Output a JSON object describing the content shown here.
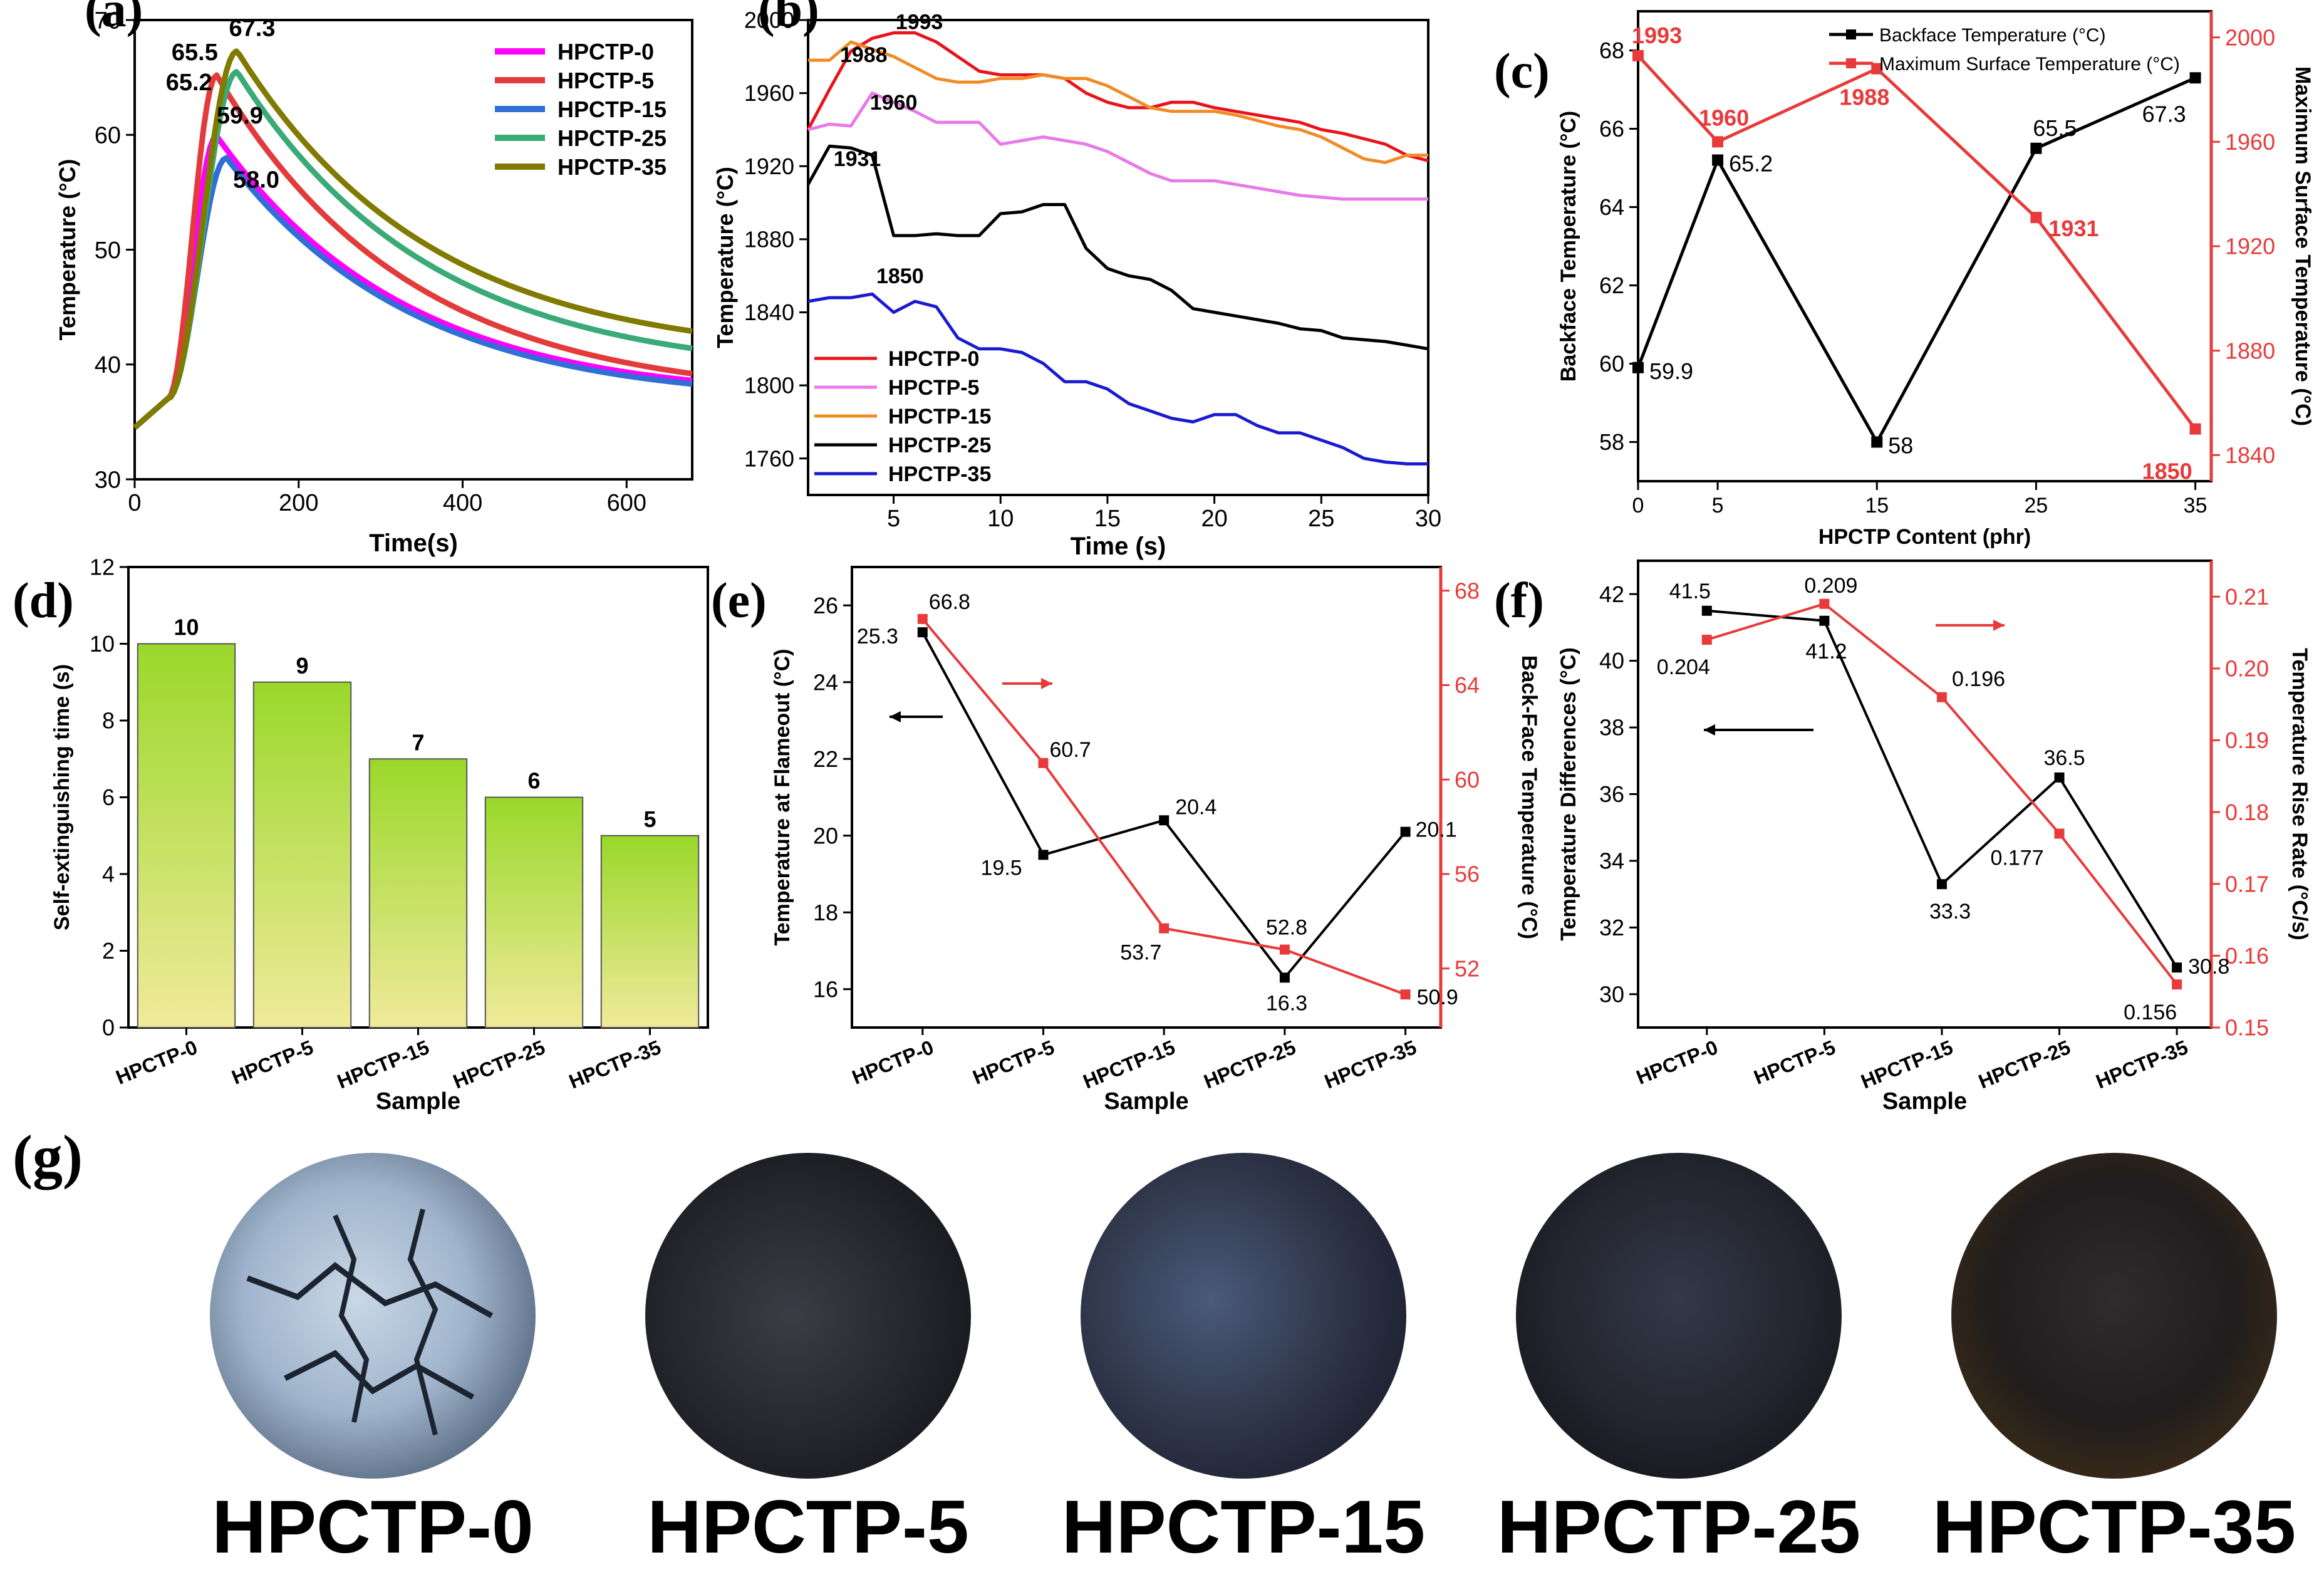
{
  "colors": {
    "pink": "#ff00ff",
    "red": "#e33b3b",
    "blue": "#2f6fd6",
    "green": "#3aaa77",
    "olive": "#807b00",
    "b_red": "#e8141c",
    "b_violet": "#e879e8",
    "b_orange": "#f08b25",
    "b_black": "#000000",
    "b_blue": "#1a1ad0",
    "axis_red": "#e83a3a",
    "bar_top": "#9ad82a",
    "bar_bottom": "#f0ea9a"
  },
  "chart_data": [
    {
      "panel": "(a)",
      "type": "line",
      "xlabel": "Time(s)",
      "ylabel": "Temperature (°C)",
      "xlim": [
        0,
        680
      ],
      "ylim": [
        30,
        70
      ],
      "xticks": [
        0,
        200,
        400,
        600
      ],
      "yticks": [
        30,
        40,
        50,
        60,
        70
      ],
      "legend": {
        "position": "top-right"
      },
      "series": [
        {
          "name": "HPCTP-0",
          "color_key": "pink",
          "peak_t": 100,
          "peak": 59.9,
          "final": 38.6
        },
        {
          "name": "HPCTP-5",
          "color_key": "red",
          "peak_t": 100,
          "peak": 65.2,
          "final": 39.2
        },
        {
          "name": "HPCTP-15",
          "color_key": "blue",
          "peak_t": 112,
          "peak": 58.0,
          "final": 38.3
        },
        {
          "name": "HPCTP-25",
          "color_key": "green",
          "peak_t": 125,
          "peak": 65.5,
          "final": 41.4
        },
        {
          "name": "HPCTP-35",
          "color_key": "olive",
          "peak_t": 125,
          "peak": 67.3,
          "final": 42.9
        }
      ],
      "annotations": [
        {
          "text": "65.5",
          "x": 45,
          "y": 66.5
        },
        {
          "text": "67.3",
          "x": 115,
          "y": 68.6
        },
        {
          "text": "65.2",
          "x": 38,
          "y": 63.9
        },
        {
          "text": "59.9",
          "x": 100,
          "y": 61.0
        },
        {
          "text": "58.0",
          "x": 120,
          "y": 55.4
        }
      ]
    },
    {
      "panel": "(b)",
      "type": "line",
      "xlabel": "Time (s)",
      "ylabel": "Temperature (°C)",
      "xlim": [
        1,
        30
      ],
      "ylim": [
        1740,
        2000
      ],
      "xticks": [
        5,
        10,
        15,
        20,
        25,
        30
      ],
      "yticks": [
        1760,
        1800,
        1840,
        1880,
        1920,
        1960,
        2000
      ],
      "legend": {
        "position": "bottom-left"
      },
      "series": [
        {
          "name": "HPCTP-0",
          "color_key": "b_red",
          "x": [
            1,
            2,
            3,
            4,
            5,
            6,
            7,
            8,
            9,
            10,
            11,
            12,
            13,
            14,
            15,
            16,
            17,
            18,
            19,
            20,
            21,
            22,
            23,
            24,
            25,
            26,
            27,
            28,
            29,
            30
          ],
          "values": [
            1940,
            1962,
            1983,
            1990,
            1993,
            1993,
            1988,
            1980,
            1972,
            1970,
            1970,
            1970,
            1968,
            1960,
            1955,
            1952,
            1952,
            1955,
            1955,
            1952,
            1950,
            1948,
            1946,
            1944,
            1940,
            1938,
            1935,
            1932,
            1926,
            1923
          ]
        },
        {
          "name": "HPCTP-5",
          "color_key": "b_violet",
          "x": [
            1,
            2,
            3,
            4,
            5,
            6,
            7,
            8,
            9,
            10,
            11,
            12,
            13,
            14,
            15,
            16,
            17,
            18,
            19,
            20,
            21,
            22,
            23,
            24,
            25,
            26,
            27,
            28,
            29,
            30
          ],
          "values": [
            1940,
            1943,
            1942,
            1960,
            1955,
            1950,
            1944,
            1944,
            1944,
            1932,
            1934,
            1936,
            1934,
            1932,
            1928,
            1922,
            1916,
            1912,
            1912,
            1912,
            1910,
            1908,
            1906,
            1904,
            1903,
            1902,
            1902,
            1902,
            1902,
            1902
          ]
        },
        {
          "name": "HPCTP-15",
          "color_key": "b_orange",
          "x": [
            1,
            2,
            3,
            4,
            5,
            6,
            7,
            8,
            9,
            10,
            11,
            12,
            13,
            14,
            15,
            16,
            17,
            18,
            19,
            20,
            21,
            22,
            23,
            24,
            25,
            26,
            27,
            28,
            29,
            30
          ],
          "values": [
            1978,
            1978,
            1988,
            1984,
            1980,
            1974,
            1968,
            1966,
            1966,
            1968,
            1968,
            1970,
            1968,
            1968,
            1964,
            1958,
            1952,
            1950,
            1950,
            1950,
            1948,
            1945,
            1942,
            1940,
            1936,
            1930,
            1924,
            1922,
            1926,
            1926
          ]
        },
        {
          "name": "HPCTP-25",
          "color_key": "b_black",
          "x": [
            1,
            2,
            3,
            4,
            5,
            6,
            7,
            8,
            9,
            10,
            11,
            12,
            13,
            14,
            15,
            16,
            17,
            18,
            19,
            20,
            21,
            22,
            23,
            24,
            25,
            26,
            27,
            28,
            29,
            30
          ],
          "values": [
            1910,
            1931,
            1930,
            1926,
            1882,
            1882,
            1883,
            1882,
            1882,
            1894,
            1895,
            1899,
            1899,
            1875,
            1864,
            1860,
            1858,
            1852,
            1842,
            1840,
            1838,
            1836,
            1834,
            1831,
            1830,
            1826,
            1825,
            1824,
            1822,
            1820
          ]
        },
        {
          "name": "HPCTP-35",
          "color_key": "b_blue",
          "x": [
            1,
            2,
            3,
            4,
            5,
            6,
            7,
            8,
            9,
            10,
            11,
            12,
            13,
            14,
            15,
            16,
            17,
            18,
            19,
            20,
            21,
            22,
            23,
            24,
            25,
            26,
            27,
            28,
            29,
            30
          ],
          "values": [
            1846,
            1848,
            1848,
            1850,
            1840,
            1846,
            1843,
            1826,
            1820,
            1820,
            1818,
            1812,
            1802,
            1802,
            1798,
            1790,
            1786,
            1782,
            1780,
            1784,
            1784,
            1778,
            1774,
            1774,
            1770,
            1766,
            1760,
            1758,
            1757,
            1757
          ]
        }
      ],
      "annotations": [
        {
          "text": "1993",
          "x": 6.2,
          "y": 1995
        },
        {
          "text": "1988",
          "x": 3.6,
          "y": 1977
        },
        {
          "text": "1960",
          "x": 5.0,
          "y": 1951
        },
        {
          "text": "1931",
          "x": 3.3,
          "y": 1920
        },
        {
          "text": "1850",
          "x": 5.3,
          "y": 1856
        }
      ]
    },
    {
      "panel": "(c)",
      "type": "line",
      "dual_axis": true,
      "xlabel": "HPCTP Content (phr)",
      "ylabel_left": "Backface Temperature (°C)",
      "ylabel_right": "Maximum Surface Temperature (°C)",
      "xlim": [
        0,
        36
      ],
      "ylim_left": [
        57,
        69
      ],
      "ylim_right": [
        1830,
        2010
      ],
      "xticks": [
        0,
        5,
        15,
        25,
        35
      ],
      "yticks_left": [
        58,
        60,
        62,
        64,
        66,
        68
      ],
      "yticks_right": [
        1840,
        1880,
        1920,
        1960,
        2000
      ],
      "legend": {
        "position": "top-right"
      },
      "series": [
        {
          "name": "Backface Temperature (°C)",
          "axis": "left",
          "color_key": "b_black",
          "x": [
            0,
            5,
            15,
            25,
            35
          ],
          "values": [
            59.9,
            65.2,
            58,
            65.5,
            67.3
          ],
          "labels": [
            "59.9",
            "65.2",
            "58",
            "65.5",
            "67.3"
          ]
        },
        {
          "name": "Maximum Surface Temperature (°C)",
          "axis": "right",
          "color_key": "axis_red",
          "x": [
            0,
            5,
            15,
            25,
            35
          ],
          "values": [
            1993,
            1960,
            1988,
            1931,
            1850
          ],
          "labels": [
            "1993",
            "1960",
            "1988",
            "1931",
            "1850"
          ]
        }
      ]
    },
    {
      "panel": "(d)",
      "type": "bar",
      "xlabel": "Sample",
      "ylabel": "Self-extinguishing time (s)",
      "categories": [
        "HPCTP-0",
        "HPCTP-5",
        "HPCTP-15",
        "HPCTP-25",
        "HPCTP-35"
      ],
      "values": [
        10,
        9,
        7,
        6,
        5
      ],
      "ylim": [
        0,
        12
      ],
      "yticks": [
        0,
        2,
        4,
        6,
        8,
        10,
        12
      ]
    },
    {
      "panel": "(e)",
      "type": "line",
      "dual_axis": true,
      "xlabel": "Sample",
      "ylabel_left": "Temperature at Flameout (°C)",
      "ylabel_right": "Back-Face Temperature (°C)",
      "categories": [
        "HPCTP-0",
        "HPCTP-5",
        "HPCTP-15",
        "HPCTP-25",
        "HPCTP-35"
      ],
      "ylim_left": [
        15,
        27
      ],
      "ylim_right": [
        49.5,
        69
      ],
      "yticks_left": [
        16,
        18,
        20,
        22,
        24,
        26
      ],
      "yticks_right": [
        52,
        56,
        60,
        64,
        68
      ],
      "series": [
        {
          "name": "Temperature at Flameout",
          "axis": "left",
          "color_key": "b_black",
          "values": [
            25.3,
            19.5,
            20.4,
            16.3,
            20.1
          ],
          "labels": [
            "25.3",
            "19.5",
            "20.4",
            "16.3",
            "20.1"
          ]
        },
        {
          "name": "Back-Face Temperature",
          "axis": "right",
          "color_key": "axis_red",
          "values": [
            66.8,
            60.7,
            53.7,
            52.8,
            50.9
          ],
          "labels": [
            "66.8",
            "60.7",
            "53.7",
            "52.8",
            "50.9"
          ]
        }
      ]
    },
    {
      "panel": "(f)",
      "type": "line",
      "dual_axis": true,
      "xlabel": "Sample",
      "ylabel_left": "Temperature Differences (°C)",
      "ylabel_right": "Temperature Rise Rate (°C/s)",
      "categories": [
        "HPCTP-0",
        "HPCTP-5",
        "HPCTP-15",
        "HPCTP-25",
        "HPCTP-35"
      ],
      "ylim_left": [
        29,
        43
      ],
      "ylim_right": [
        0.15,
        0.215
      ],
      "yticks_left": [
        30,
        32,
        34,
        36,
        38,
        40,
        42
      ],
      "yticks_right": [
        0.15,
        0.16,
        0.17,
        0.18,
        0.19,
        0.2,
        0.21
      ],
      "series": [
        {
          "name": "Temperature Differences",
          "axis": "left",
          "color_key": "b_black",
          "values": [
            41.5,
            41.2,
            33.3,
            36.5,
            30.8
          ],
          "labels": [
            "41.5",
            "41.2",
            "33.3",
            "36.5",
            "30.8"
          ]
        },
        {
          "name": "Temperature Rise Rate",
          "axis": "right",
          "color_key": "axis_red",
          "values": [
            0.204,
            0.209,
            0.196,
            0.177,
            0.156
          ],
          "labels": [
            "0.204",
            "0.209",
            "0.196",
            "0.177",
            "0.156"
          ]
        }
      ]
    }
  ],
  "panel_g": {
    "label": "(g)",
    "samples": [
      "HPCTP-0",
      "HPCTP-5",
      "HPCTP-15",
      "HPCTP-25",
      "HPCTP-35"
    ]
  }
}
